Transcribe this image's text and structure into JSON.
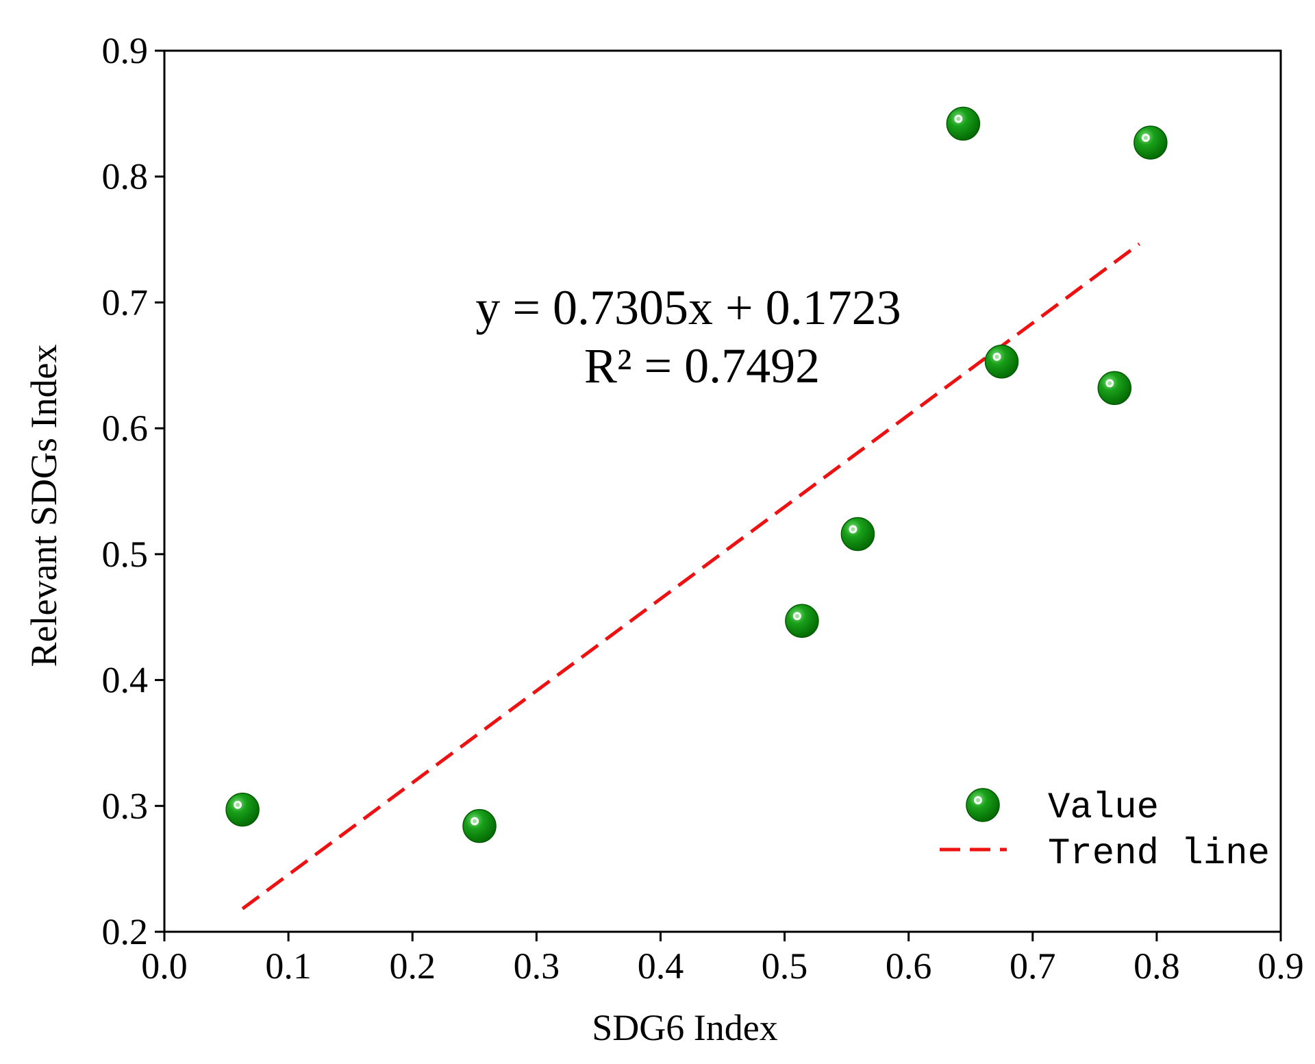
{
  "chart_data": {
    "type": "scatter",
    "title": "",
    "xlabel": "SDG6 Index",
    "ylabel": "Relevant SDGs Index",
    "xlim": [
      0.0,
      0.9
    ],
    "ylim": [
      0.2,
      0.9
    ],
    "x_ticks": [
      "0.0",
      "0.1",
      "0.2",
      "0.3",
      "0.4",
      "0.5",
      "0.6",
      "0.7",
      "0.8",
      "0.9"
    ],
    "y_ticks": [
      "0.2",
      "0.3",
      "0.4",
      "0.5",
      "0.6",
      "0.7",
      "0.8",
      "0.9"
    ],
    "grid": false,
    "series": [
      {
        "name": "Value",
        "type": "scatter",
        "color": "#0a8a0a",
        "points": [
          {
            "x": 0.063,
            "y": 0.297
          },
          {
            "x": 0.254,
            "y": 0.284
          },
          {
            "x": 0.514,
            "y": 0.447
          },
          {
            "x": 0.559,
            "y": 0.516
          },
          {
            "x": 0.644,
            "y": 0.842
          },
          {
            "x": 0.675,
            "y": 0.653
          },
          {
            "x": 0.766,
            "y": 0.632
          },
          {
            "x": 0.795,
            "y": 0.827
          }
        ]
      },
      {
        "name": "Trend line",
        "type": "line",
        "style": "dashed",
        "color": "#ee1111",
        "slope": 0.7305,
        "intercept": 0.1723,
        "x_range": [
          0.063,
          0.786
        ]
      }
    ],
    "annotations": {
      "equation": "y = 0.7305x + 0.1723",
      "r_squared": "R² = 0.7492"
    },
    "legend": {
      "placement": "bottom-right",
      "entries": [
        "Value",
        "Trend line"
      ]
    }
  }
}
